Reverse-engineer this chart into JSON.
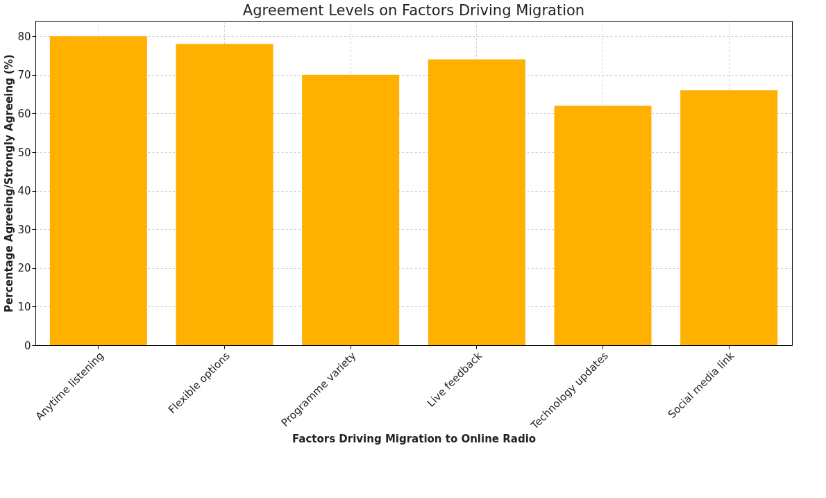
{
  "chart_data": {
    "type": "bar",
    "title": "Agreement Levels on Factors Driving Migration",
    "xlabel": "Factors Driving Migration to Online Radio",
    "ylabel": "Percentage Agreeing/Strongly Agreeing (%)",
    "categories": [
      "Anytime listening",
      "Flexible options",
      "Programme variety",
      "Live feedback",
      "Technology updates",
      "Social media link"
    ],
    "values": [
      80,
      78,
      70,
      74,
      62,
      66
    ],
    "color": "#ffb000",
    "ylim": [
      0,
      84
    ],
    "yticks": [
      0,
      10,
      20,
      30,
      40,
      50,
      60,
      70,
      80
    ],
    "grid": true
  }
}
